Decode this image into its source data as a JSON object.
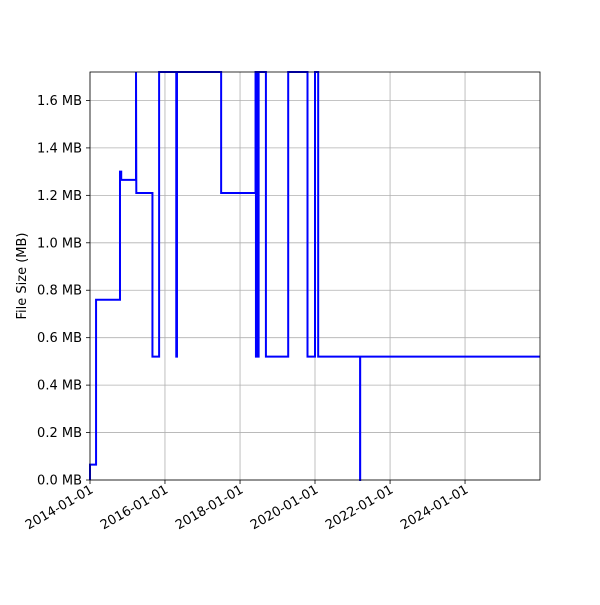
{
  "chart_data": {
    "type": "line",
    "title": "",
    "xlabel": "",
    "ylabel": "File Size (MB)",
    "x_type": "date",
    "xlim": [
      "2014-01-01",
      "2025-12-31"
    ],
    "ylim": [
      0,
      1.72
    ],
    "grid": true,
    "legend": "none",
    "line_color": "#0000ff",
    "step": true,
    "x_ticks": [
      "2014-01-01",
      "2016-01-01",
      "2018-01-01",
      "2020-01-01",
      "2022-01-01",
      "2024-01-01"
    ],
    "x_tick_labels": [
      "2014-01-01",
      "2016-01-01",
      "2018-01-01",
      "2020-01-01",
      "2022-01-01",
      "2024-01-01"
    ],
    "y_ticks": [
      0,
      0.2,
      0.4,
      0.6,
      0.8,
      1.0,
      1.2,
      1.4,
      1.6
    ],
    "y_tick_labels": [
      "0.0 MB",
      "0.2 MB",
      "0.4 MB",
      "0.6 MB",
      "0.8 MB",
      "1.0 MB",
      "1.2 MB",
      "1.4 MB",
      "1.6 MB"
    ],
    "series": [
      {
        "x": [
          "2014-01-01",
          "2014-01-01",
          "2014-01-02",
          "2014-01-02",
          "2014-03-01",
          "2014-03-01",
          "2014-10-20",
          "2014-10-20",
          "2014-11-01",
          "2014-11-01",
          "2015-03-25",
          "2015-03-25",
          "2015-03-28",
          "2015-09-01",
          "2015-09-01",
          "2015-11-05",
          "2015-11-05",
          "2016-04-20",
          "2016-04-20",
          "2016-04-27",
          "2016-04-27",
          "2017-07-01",
          "2017-07-01",
          "2018-06-01",
          "2018-06-01",
          "2018-06-05",
          "2018-06-05",
          "2018-06-12",
          "2018-06-12",
          "2018-06-20",
          "2018-06-20",
          "2018-07-01",
          "2018-07-01",
          "2018-09-10",
          "2018-09-10",
          "2019-04-15",
          "2019-04-15",
          "2019-10-20",
          "2019-10-20",
          "2020-01-01",
          "2020-01-01",
          "2020-02-01",
          "2020-02-01",
          "2021-03-15",
          "2021-03-15",
          "2021-03-16",
          "2021-03-16",
          "2025-12-31"
        ],
        "y": [
          0.0,
          0.065,
          0.065,
          0.065,
          0.065,
          0.76,
          0.76,
          1.3,
          1.3,
          1.265,
          1.265,
          1.72,
          1.21,
          1.21,
          0.52,
          0.52,
          1.72,
          1.72,
          0.52,
          0.52,
          1.72,
          1.72,
          1.21,
          1.21,
          1.72,
          1.72,
          0.52,
          0.52,
          1.72,
          1.72,
          0.52,
          0.52,
          1.72,
          1.72,
          0.52,
          0.52,
          1.72,
          1.72,
          0.52,
          0.52,
          1.72,
          1.72,
          0.52,
          0.52,
          0.0,
          0.0,
          0.52,
          0.52
        ]
      }
    ]
  }
}
